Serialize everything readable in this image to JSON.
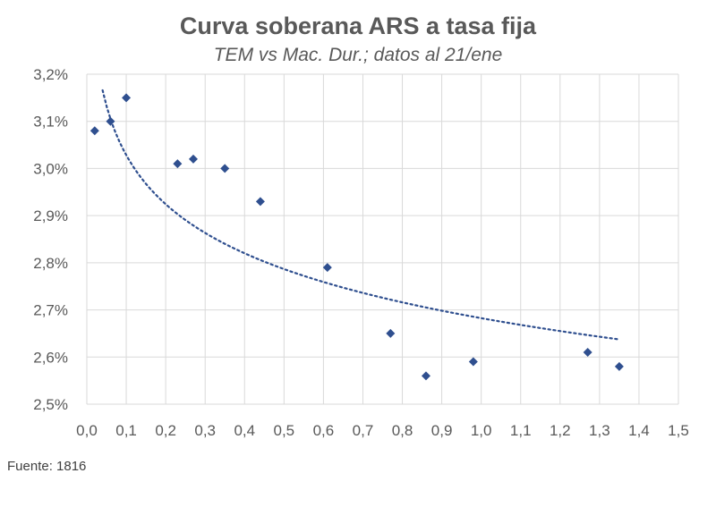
{
  "chart_data": {
    "type": "scatter",
    "title": "Curva soberana ARS a tasa fija",
    "subtitle": "TEM vs Mac. Dur.; datos al 21/ene",
    "xlabel": "",
    "ylabel": "",
    "xlim": [
      0.0,
      1.5
    ],
    "ylim": [
      2.5,
      3.2
    ],
    "x_ticks": [
      "0,0",
      "0,1",
      "0,2",
      "0,3",
      "0,4",
      "0,5",
      "0,6",
      "0,7",
      "0,8",
      "0,9",
      "1,0",
      "1,1",
      "1,2",
      "1,3",
      "1,4",
      "1,5"
    ],
    "y_ticks": [
      "2,5%",
      "2,6%",
      "2,7%",
      "2,8%",
      "2,9%",
      "3,0%",
      "3,1%",
      "3,2%"
    ],
    "grid": true,
    "legend": "none",
    "marker": "diamond",
    "points": [
      {
        "x": 0.02,
        "y": 3.08
      },
      {
        "x": 0.06,
        "y": 3.1
      },
      {
        "x": 0.1,
        "y": 3.15
      },
      {
        "x": 0.23,
        "y": 3.01
      },
      {
        "x": 0.27,
        "y": 3.02
      },
      {
        "x": 0.35,
        "y": 3.0
      },
      {
        "x": 0.44,
        "y": 2.93
      },
      {
        "x": 0.61,
        "y": 2.79
      },
      {
        "x": 0.77,
        "y": 2.65
      },
      {
        "x": 0.86,
        "y": 2.56
      },
      {
        "x": 0.98,
        "y": 2.59
      },
      {
        "x": 1.27,
        "y": 2.61
      },
      {
        "x": 1.35,
        "y": 2.58
      }
    ],
    "trendline": {
      "type": "logarithmic",
      "style": "dotted",
      "x_range": [
        0.04,
        1.35
      ],
      "coef_a": 2.6825,
      "coef_b": -0.1502
    },
    "source": "Fuente: 1816"
  },
  "colors": {
    "marker": "#2F4F8F",
    "trendline": "#2F4F8F",
    "grid": "#D9D9D9",
    "text": "#595959"
  }
}
